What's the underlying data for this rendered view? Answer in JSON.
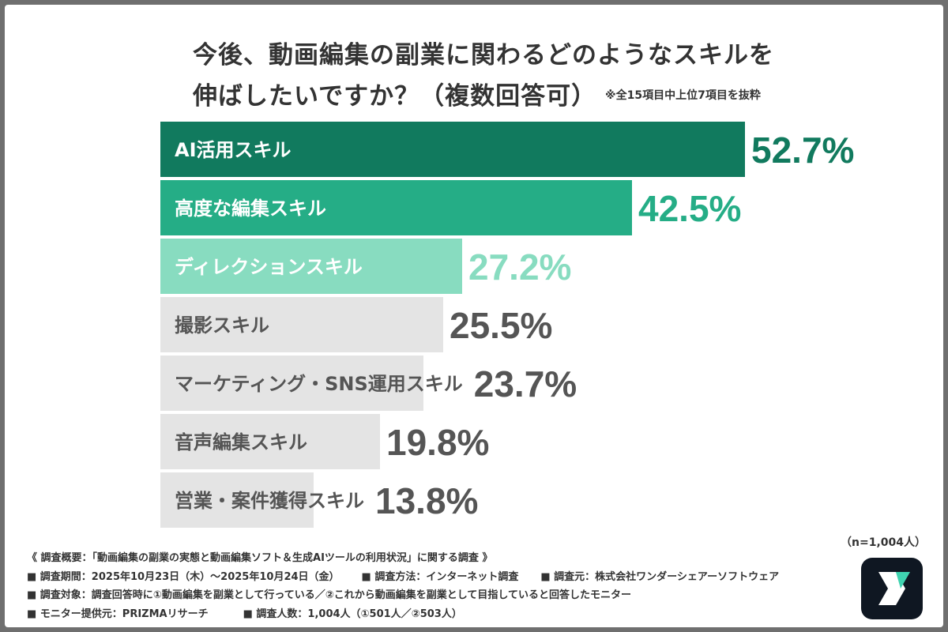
{
  "title_line1": "今後、動画編集の副業に関わるどのようなスキルを",
  "title_line2": "伸ばしたいですか？（複数回答可）",
  "note": "※全15項目中上位7項目を抜粋",
  "sample_size": "（n=1,004人）",
  "survey": {
    "overview": "《 調査概要：「動画編集の副業の実態と動画編集ソフト＆生成AIツールの利用状況」に関する調査 》",
    "period": "■ 調査期間：2025年10月23日（木）〜2025年10月24日（金）",
    "method": "■ 調査方法：インターネット調査",
    "org": "■ 調査元：株式会社ワンダーシェアーソフトウェア",
    "target": "■ 調査対象：調査回答時に①動画編集を副業として行っている／②これから動画編集を副業として目指していると回答したモニター",
    "provider": "■ モニター提供元：PRIZMAリサーチ",
    "count": "■ 調査人数：1,004人（①501人／②503人）"
  },
  "logo": {
    "name": "app-logo",
    "colors": [
      "#0f1722",
      "#ffffff",
      "#3fd3b0"
    ]
  },
  "chart_data": {
    "type": "bar",
    "orientation": "horizontal",
    "categories": [
      "AI活用スキル",
      "高度な編集スキル",
      "ディレクションスキル",
      "撮影スキル",
      "マーケティング・SNS運用スキル",
      "音声編集スキル",
      "営業・案件獲得スキル"
    ],
    "values": [
      52.7,
      42.5,
      27.2,
      25.5,
      23.7,
      19.8,
      13.8
    ],
    "value_labels": [
      "52.7%",
      "42.5%",
      "27.2%",
      "25.5%",
      "23.7%",
      "19.8%",
      "13.8%"
    ],
    "unit": "%",
    "bar_colors": [
      "#117a5e",
      "#25ad86",
      "#88dcc0",
      "#e4e4e4",
      "#e4e4e4",
      "#e4e4e4",
      "#e4e4e4"
    ],
    "label_colors": [
      "#ffffff",
      "#ffffff",
      "#ffffff",
      "#555555",
      "#555555",
      "#555555",
      "#555555"
    ],
    "value_colors": [
      "#117a5e",
      "#25ad86",
      "#88dcc0",
      "#555555",
      "#555555",
      "#555555",
      "#555555"
    ],
    "xlim": [
      0,
      52.7
    ],
    "grid": false,
    "legend": "none"
  }
}
